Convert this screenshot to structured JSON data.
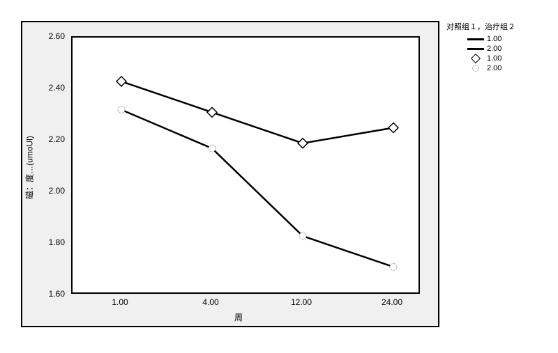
{
  "chart": {
    "type": "line",
    "background_color": "#f0f0f0",
    "plot_background_color": "#ffffff",
    "border_color": "#000000",
    "x_categories": [
      "1.00",
      "4.00",
      "12.00",
      "24.00"
    ],
    "x_positions": [
      70,
      200,
      330,
      460
    ],
    "xlabel": "周",
    "ylabel": "磁：度…(umoUl)",
    "ylim": [
      1.6,
      2.6
    ],
    "ytick_step": 0.2,
    "y_ticks": [
      "1.60",
      "1.80",
      "2.00",
      "2.20",
      "2.40",
      "2.60"
    ],
    "label_fontsize": 12,
    "tick_fontsize": 12,
    "line_color": "#000000",
    "line_width": 2.5,
    "marker_size": 7,
    "series": [
      {
        "name": "1.00",
        "values": [
          2.43,
          2.31,
          2.19,
          2.25
        ],
        "marker": "diamond",
        "marker_fill": "#ffffff",
        "marker_stroke": "#000000"
      },
      {
        "name": "2.00",
        "values": [
          2.32,
          2.17,
          1.83,
          1.71
        ],
        "marker": "circle",
        "marker_fill": "#ffffff",
        "marker_stroke": "#888888"
      }
    ],
    "legend": {
      "title": "对照组１，治疗组２",
      "items": [
        {
          "type": "line",
          "label": "1.00"
        },
        {
          "type": "line",
          "label": "2.00"
        },
        {
          "type": "diamond",
          "label": "1.00"
        },
        {
          "type": "circle",
          "label": "2.00"
        }
      ]
    }
  }
}
